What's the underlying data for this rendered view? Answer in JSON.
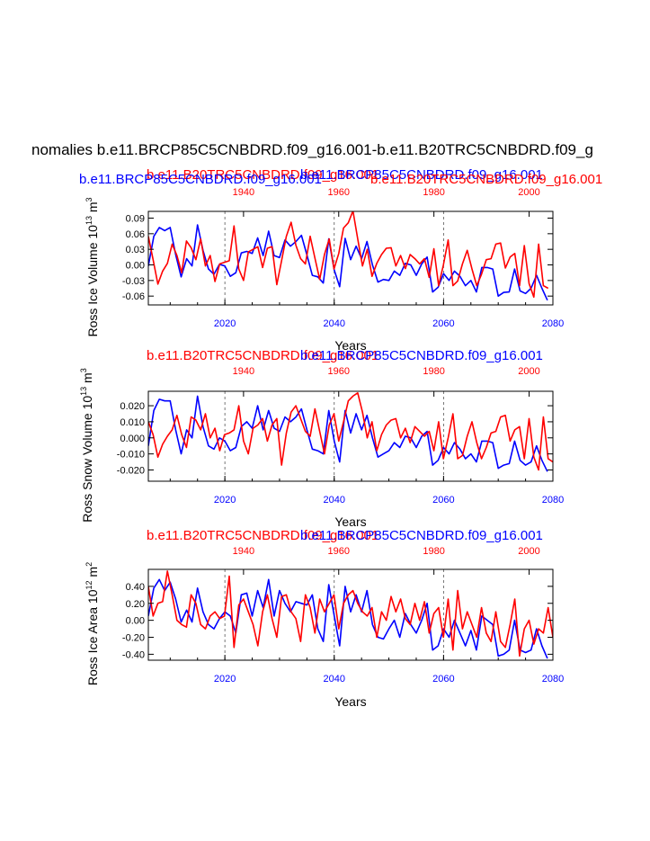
{
  "page_title": "nomalies b.e11.BRCP85C5CNBDRD.f09_g16.001-b.e11.B20TRC5CNBDRD.f09_g",
  "colors": {
    "blue": "#0000ff",
    "red": "#ff0000",
    "black": "#000000",
    "grid": "#555555"
  },
  "chart_data": [
    {
      "type": "line",
      "title_top": {
        "red": "b.e11.B20TRC5CNBDRD.f09_g16.001",
        "blue": "b.e11.BRCP85C5CNBDRD.f09_g16.001"
      },
      "title_row2": {
        "blue": "b.e11.BRCP85C5CNBDRD.f09_g16.001",
        "red": "b.e11.B20TRC5CNBDRD.f09_g16.001"
      },
      "ylabel": "Ross Ice Volume 10",
      "ylabel_exp": "13",
      "ylabel_unit": "m",
      "ylabel_unit_exp": "3",
      "xlabel": "Years",
      "ylim": [
        -0.077,
        0.103
      ],
      "yticks": [
        -0.06,
        -0.03,
        0.0,
        0.03,
        0.06,
        0.09
      ],
      "ytick_labels": [
        "-0.06",
        "-0.03",
        "0.00",
        "0.03",
        "0.06",
        "0.09"
      ],
      "bottom_xlim": [
        2006,
        2080
      ],
      "bottom_ticks": [
        2020,
        2040,
        2060,
        2080
      ],
      "bottom_tick_labels": [
        "2020",
        "2040",
        "2060",
        "2080"
      ],
      "top_xlim": [
        1920,
        2005
      ],
      "top_ticks": [
        1940,
        1960,
        1980,
        2000
      ],
      "top_tick_labels": [
        "1940",
        "1960",
        "1980",
        "2000"
      ],
      "vlines": [
        2020,
        2040,
        2060
      ],
      "series": [
        {
          "name": "b.e11.BRCP85C5CNBDRD.f09_g16.001",
          "color": "blue",
          "axis": "bottom",
          "x_start": 2006,
          "values": [
            -0.002,
            0.055,
            0.072,
            0.066,
            0.072,
            0.02,
            -0.023,
            0.012,
            -0.002,
            0.077,
            0.028,
            -0.008,
            -0.018,
            0.001,
            -0.002,
            -0.022,
            -0.015,
            0.023,
            0.026,
            0.022,
            0.052,
            0.018,
            0.065,
            0.018,
            0.014,
            0.048,
            0.036,
            0.045,
            0.057,
            0.019,
            -0.02,
            -0.023,
            -0.035,
            0.05,
            -0.01,
            -0.042,
            0.051,
            0.01,
            0.036,
            0.012,
            0.045,
            0.0,
            -0.033,
            -0.028,
            -0.03,
            -0.012,
            -0.02,
            0.003,
            0.0,
            -0.02,
            0.002,
            0.015,
            -0.052,
            -0.043,
            -0.017,
            -0.03,
            -0.012,
            -0.022,
            -0.04,
            -0.03,
            -0.052,
            -0.005,
            -0.005,
            -0.008,
            -0.06,
            -0.053,
            -0.052,
            -0.008,
            -0.05,
            -0.055,
            -0.045,
            -0.02,
            -0.045,
            -0.068
          ]
        },
        {
          "name": "b.e11.B20TRC5CNBDRD.f09_g16.001",
          "color": "red",
          "axis": "top",
          "x_start": 1920,
          "values": [
            0.055,
            0.01,
            -0.037,
            -0.012,
            0.003,
            0.04,
            0.018,
            -0.015,
            0.046,
            0.033,
            0.01,
            0.05,
            -0.002,
            0.018,
            -0.032,
            0.002,
            0.005,
            0.008,
            0.075,
            -0.008,
            -0.03,
            0.025,
            0.03,
            0.035,
            -0.005,
            0.032,
            0.035,
            -0.038,
            0.008,
            0.055,
            0.082,
            0.038,
            0.012,
            0.002,
            0.055,
            0.013,
            -0.028,
            0.02,
            0.05,
            -0.008,
            0.022,
            0.071,
            0.081,
            0.104,
            0.05,
            -0.002,
            0.03,
            -0.022,
            0.003,
            0.02,
            0.032,
            0.033,
            -0.002,
            0.018,
            -0.007,
            0.02,
            0.012,
            0.002,
            0.012,
            -0.024,
            0.031,
            -0.04,
            0.0,
            0.048,
            -0.04,
            -0.031,
            0.002,
            0.028,
            -0.008,
            -0.04,
            -0.018,
            0.01,
            0.012,
            0.04,
            0.042,
            -0.006,
            0.015,
            0.022,
            -0.04,
            0.037,
            -0.036,
            -0.062,
            0.04,
            -0.04,
            -0.045
          ]
        }
      ]
    },
    {
      "type": "line",
      "title_top": {
        "red": "b.e11.B20TRC5CNBDRD.f09_g16.001",
        "blue": "b.e11.BRCP85C5CNBDRD.f09_g16.001"
      },
      "ylabel": "Ross Snow Volume 10",
      "ylabel_exp": "13",
      "ylabel_unit": "m",
      "ylabel_unit_exp": "3",
      "xlabel": "Years",
      "ylim": [
        -0.027,
        0.029
      ],
      "yticks": [
        -0.02,
        -0.01,
        0.0,
        0.01,
        0.02
      ],
      "ytick_labels": [
        "-0.020",
        "-0.010",
        "0.000",
        "0.010",
        "0.020"
      ],
      "bottom_xlim": [
        2006,
        2080
      ],
      "bottom_ticks": [
        2020,
        2040,
        2060,
        2080
      ],
      "bottom_tick_labels": [
        "2020",
        "2040",
        "2060",
        "2080"
      ],
      "top_xlim": [
        1920,
        2005
      ],
      "top_ticks": [
        1940,
        1960,
        1980,
        2000
      ],
      "top_tick_labels": [
        "1940",
        "1960",
        "1980",
        "2000"
      ],
      "vlines": [
        2020,
        2040,
        2060
      ],
      "series": [
        {
          "name": "b.e11.BRCP85C5CNBDRD.f09_g16.001",
          "color": "blue",
          "axis": "bottom",
          "x_start": 2006,
          "values": [
            -0.005,
            0.017,
            0.024,
            0.023,
            0.023,
            0.005,
            -0.01,
            0.005,
            0.0,
            0.026,
            0.007,
            -0.005,
            -0.007,
            0.0,
            -0.002,
            -0.008,
            -0.006,
            0.007,
            0.01,
            0.006,
            0.02,
            0.005,
            0.017,
            0.006,
            0.004,
            0.013,
            0.01,
            0.013,
            0.018,
            0.005,
            -0.007,
            -0.008,
            -0.01,
            0.017,
            -0.002,
            -0.015,
            0.017,
            0.003,
            0.015,
            0.005,
            0.014,
            0.0,
            -0.012,
            -0.01,
            -0.008,
            -0.003,
            -0.006,
            0.001,
            0.0,
            -0.006,
            0.001,
            0.004,
            -0.017,
            -0.014,
            -0.006,
            -0.01,
            -0.003,
            -0.007,
            -0.013,
            -0.01,
            -0.015,
            -0.002,
            -0.002,
            -0.003,
            -0.019,
            -0.017,
            -0.016,
            -0.002,
            -0.014,
            -0.017,
            -0.015,
            -0.005,
            -0.014,
            -0.021
          ]
        },
        {
          "name": "b.e11.B20TRC5CNBDRD.f09_g16.001",
          "color": "red",
          "axis": "top",
          "x_start": 1920,
          "values": [
            0.01,
            0.002,
            -0.012,
            -0.004,
            0.001,
            0.005,
            0.014,
            0.002,
            -0.006,
            0.013,
            0.011,
            0.005,
            0.015,
            0.0,
            0.006,
            -0.008,
            0.002,
            0.003,
            0.005,
            0.02,
            -0.002,
            -0.01,
            0.006,
            0.008,
            0.012,
            -0.002,
            0.008,
            0.012,
            -0.017,
            0.003,
            0.016,
            0.02,
            0.012,
            0.004,
            0.001,
            0.018,
            0.004,
            -0.01,
            0.008,
            0.015,
            -0.002,
            0.01,
            0.023,
            0.026,
            0.028,
            0.016,
            0.0,
            0.01,
            -0.008,
            0.002,
            0.008,
            0.011,
            0.012,
            0.0,
            0.006,
            -0.003,
            0.007,
            0.004,
            0.001,
            0.004,
            -0.008,
            0.01,
            -0.013,
            0.0,
            0.015,
            -0.013,
            -0.011,
            0.001,
            0.01,
            -0.003,
            -0.013,
            -0.006,
            0.003,
            0.004,
            0.013,
            0.014,
            -0.002,
            0.005,
            0.007,
            -0.013,
            0.012,
            -0.012,
            -0.02,
            0.013,
            -0.013,
            -0.015
          ]
        }
      ]
    },
    {
      "type": "line",
      "title_top": {
        "red": "b.e11.B20TRC5CNBDRD.f09_g16.001",
        "blue": "b.e11.BRCP85C5CNBDRD.f09_g16.001"
      },
      "ylabel": "Ross Ice Area 10",
      "ylabel_exp": "12",
      "ylabel_unit": "m",
      "ylabel_unit_exp": "2",
      "xlabel": "Years",
      "ylim": [
        -0.47,
        0.6
      ],
      "yticks": [
        -0.4,
        -0.2,
        0.0,
        0.2,
        0.4
      ],
      "ytick_labels": [
        "-0.40",
        "-0.20",
        "0.00",
        "0.20",
        "0.40"
      ],
      "bottom_xlim": [
        2006,
        2080
      ],
      "bottom_ticks": [
        2020,
        2040,
        2060,
        2080
      ],
      "bottom_tick_labels": [
        "2020",
        "2040",
        "2060",
        "2080"
      ],
      "top_xlim": [
        1920,
        2005
      ],
      "top_ticks": [
        1940,
        1960,
        1980,
        2000
      ],
      "top_tick_labels": [
        "1940",
        "1960",
        "1980",
        "2000"
      ],
      "vlines": [
        2020,
        2040,
        2060
      ],
      "series": [
        {
          "name": "b.e11.BRCP85C5CNBDRD.f09_g16.001",
          "color": "blue",
          "axis": "bottom",
          "x_start": 2006,
          "values": [
            0.05,
            0.38,
            0.48,
            0.35,
            0.45,
            0.25,
            -0.02,
            0.12,
            -0.02,
            0.38,
            0.1,
            -0.05,
            -0.1,
            0.02,
            0.1,
            0.05,
            -0.15,
            0.3,
            0.32,
            0.05,
            0.35,
            0.15,
            0.48,
            0.05,
            0.35,
            0.2,
            0.1,
            0.22,
            0.2,
            0.18,
            0.3,
            -0.1,
            -0.25,
            0.42,
            0.05,
            -0.3,
            0.4,
            0.1,
            0.3,
            0.1,
            0.35,
            -0.05,
            -0.2,
            -0.22,
            -0.1,
            0.0,
            -0.2,
            0.08,
            -0.05,
            -0.15,
            0.0,
            0.2,
            -0.35,
            -0.3,
            -0.1,
            -0.2,
            0.0,
            -0.15,
            -0.3,
            -0.12,
            -0.35,
            0.05,
            0.0,
            -0.05,
            -0.42,
            -0.4,
            -0.35,
            0.0,
            -0.35,
            -0.38,
            -0.35,
            -0.1,
            -0.3,
            -0.45
          ]
        },
        {
          "name": "b.e11.B20TRC5CNBDRD.f09_g16.001",
          "color": "red",
          "axis": "top",
          "x_start": 1920,
          "values": [
            0.4,
            0.05,
            0.2,
            0.22,
            0.58,
            0.3,
            0.0,
            -0.05,
            -0.08,
            0.3,
            0.2,
            -0.05,
            -0.1,
            0.05,
            0.1,
            0.02,
            0.05,
            0.52,
            -0.32,
            0.18,
            0.25,
            0.1,
            -0.05,
            -0.3,
            0.1,
            0.3,
            0.02,
            -0.2,
            0.28,
            0.3,
            0.1,
            0.02,
            -0.25,
            0.3,
            0.15,
            -0.15,
            0.25,
            0.1,
            0.2,
            0.3,
            -0.1,
            0.2,
            0.3,
            0.35,
            0.2,
            0.1,
            0.05,
            0.15,
            -0.2,
            0.1,
            0.0,
            0.28,
            0.1,
            0.25,
            0.02,
            -0.05,
            0.2,
            0.0,
            0.22,
            -0.15,
            0.08,
            0.15,
            -0.2,
            0.25,
            -0.35,
            0.35,
            -0.1,
            0.1,
            -0.05,
            -0.2,
            0.15,
            -0.15,
            -0.25,
            0.1,
            -0.25,
            -0.32,
            -0.05,
            0.25,
            -0.42,
            -0.1,
            0.0,
            -0.28,
            -0.1,
            -0.15,
            0.15,
            -0.2,
            -0.42
          ]
        }
      ]
    }
  ]
}
